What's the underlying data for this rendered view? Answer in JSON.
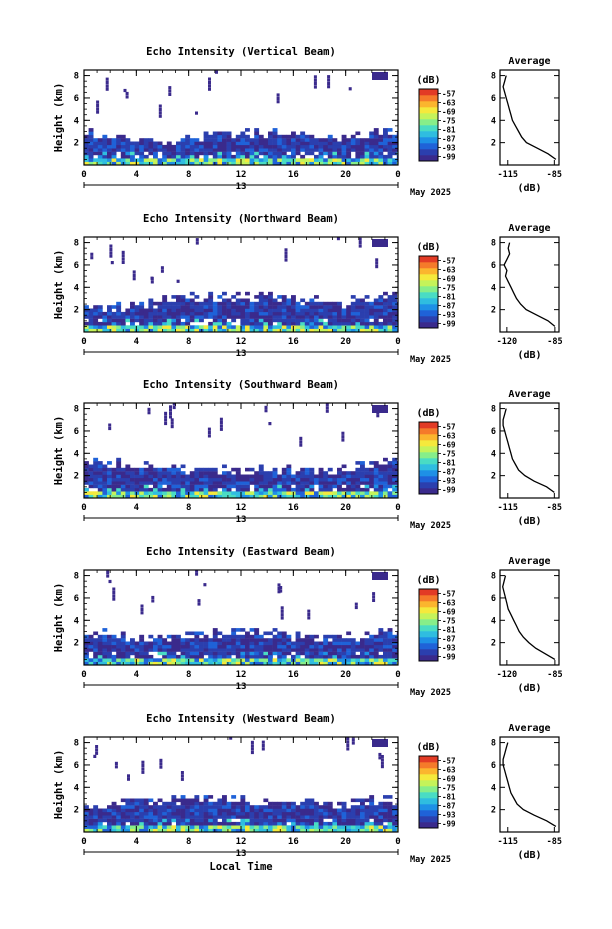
{
  "figure": {
    "month_label": "May 2025",
    "day_label": "13",
    "x_axis_title": "Local Time",
    "y_axis_title": "Height (km)",
    "colorbar_unit": "(dB)",
    "colorbar_ticks": [
      "-57",
      "-63",
      "-69",
      "-75",
      "-81",
      "-87",
      "-93",
      "-99"
    ],
    "avg_title": "Average",
    "avg_xlabel": "(dB)"
  },
  "chart_data": [
    {
      "type": "heatmap",
      "title": "Echo Intensity (Vertical Beam)",
      "xlabel": "",
      "ylabel": "Height (km)",
      "x_ticks": [
        "0",
        "4",
        "8",
        "12",
        "16",
        "20",
        "0"
      ],
      "y_ticks": [
        "2",
        "4",
        "6",
        "8"
      ],
      "xlim": [
        0,
        24
      ],
      "ylim": [
        0,
        8.5
      ],
      "colorbar_range_db": [
        -99,
        -57
      ],
      "layer_top_km": [
        3.0,
        2.6,
        2.4,
        2.2,
        2.2,
        2.3,
        2.6,
        2.9,
        3.0,
        3.1,
        3.0,
        2.9,
        2.6,
        2.3,
        2.9,
        3.2,
        3.3
      ],
      "profile": {
        "title": "Average",
        "xlabel": "(dB)",
        "x_ticks": [
          "-115",
          "-85"
        ],
        "y_ticks": [
          "2",
          "4",
          "6",
          "8"
        ],
        "xlim": [
          -120,
          -82
        ],
        "height_km": [
          0.5,
          1.0,
          1.5,
          2.0,
          2.5,
          3.0,
          3.5,
          4.0,
          4.5,
          5.0,
          5.5,
          6.0,
          6.5,
          7.0,
          7.5,
          8.0
        ],
        "mean_db": [
          -84,
          -89,
          -96,
          -103,
          -106,
          -108,
          -110,
          -112,
          -113,
          -114,
          -115,
          -116,
          -117,
          -118,
          -117,
          -116
        ]
      }
    },
    {
      "type": "heatmap",
      "title": "Echo Intensity (Northward Beam)",
      "xlabel": "",
      "ylabel": "Height (km)",
      "x_ticks": [
        "0",
        "4",
        "8",
        "12",
        "16",
        "20",
        "0"
      ],
      "y_ticks": [
        "2",
        "4",
        "6",
        "8"
      ],
      "xlim": [
        0,
        24
      ],
      "ylim": [
        0,
        8.5
      ],
      "colorbar_range_db": [
        -99,
        -57
      ],
      "layer_top_km": [
        2.2,
        2.2,
        2.3,
        2.5,
        2.9,
        3.1,
        3.2,
        3.3,
        3.1,
        3.3,
        3.2,
        3.0,
        2.9,
        2.7,
        3.0,
        3.2,
        3.2
      ],
      "profile": {
        "title": "Average",
        "xlabel": "(dB)",
        "x_ticks": [
          "-120",
          "-85"
        ],
        "y_ticks": [
          "2",
          "4",
          "6",
          "8"
        ],
        "xlim": [
          -125,
          -82
        ],
        "height_km": [
          0.5,
          1.0,
          1.5,
          2.0,
          2.5,
          3.0,
          3.5,
          4.0,
          4.5,
          5.0,
          5.5,
          6.0,
          6.5,
          7.0,
          7.5,
          8.0
        ],
        "mean_db": [
          -85,
          -90,
          -98,
          -106,
          -110,
          -113,
          -115,
          -117,
          -119,
          -121,
          -120,
          -122,
          -120,
          -118,
          -119,
          -118
        ]
      }
    },
    {
      "type": "heatmap",
      "title": "Echo Intensity (Southward Beam)",
      "xlabel": "",
      "ylabel": "Height (km)",
      "x_ticks": [
        "0",
        "4",
        "8",
        "12",
        "16",
        "20",
        "0"
      ],
      "y_ticks": [
        "2",
        "4",
        "6",
        "8"
      ],
      "xlim": [
        0,
        24
      ],
      "ylim": [
        0,
        8.5
      ],
      "colorbar_range_db": [
        -99,
        -57
      ],
      "layer_top_km": [
        3.6,
        3.4,
        3.2,
        3.0,
        2.7,
        2.5,
        2.5,
        2.6,
        2.7,
        2.6,
        2.6,
        2.5,
        2.5,
        2.6,
        3.0,
        3.4,
        3.6
      ],
      "profile": {
        "title": "Average",
        "xlabel": "(dB)",
        "x_ticks": [
          "-115",
          "-85"
        ],
        "y_ticks": [
          "2",
          "4",
          "6",
          "8"
        ],
        "xlim": [
          -120,
          -82
        ],
        "height_km": [
          0.5,
          1.0,
          1.5,
          2.0,
          2.5,
          3.0,
          3.5,
          4.0,
          4.5,
          5.0,
          5.5,
          6.0,
          6.5,
          7.0,
          7.5,
          8.0
        ],
        "mean_db": [
          -85,
          -90,
          -98,
          -104,
          -108,
          -110,
          -112,
          -113,
          -114,
          -115,
          -116,
          -117,
          -118,
          -118,
          -117,
          -116
        ]
      }
    },
    {
      "type": "heatmap",
      "title": "Echo Intensity (Eastward Beam)",
      "xlabel": "",
      "ylabel": "Height (km)",
      "x_ticks": [
        "0",
        "4",
        "8",
        "12",
        "16",
        "20",
        "0"
      ],
      "y_ticks": [
        "2",
        "4",
        "6",
        "8"
      ],
      "xlim": [
        0,
        24
      ],
      "ylim": [
        0,
        8.5
      ],
      "colorbar_range_db": [
        -99,
        -57
      ],
      "layer_top_km": [
        3.0,
        2.9,
        2.7,
        2.6,
        2.5,
        2.6,
        2.8,
        3.1,
        3.1,
        3.0,
        2.8,
        2.6,
        2.5,
        2.4,
        2.8,
        3.1,
        3.1
      ],
      "profile": {
        "title": "Average",
        "xlabel": "(dB)",
        "x_ticks": [
          "-120",
          "-85"
        ],
        "y_ticks": [
          "2",
          "4",
          "6",
          "8"
        ],
        "xlim": [
          -125,
          -82
        ],
        "height_km": [
          0.5,
          1.0,
          1.5,
          2.0,
          2.5,
          3.0,
          3.5,
          4.0,
          4.5,
          5.0,
          5.5,
          6.0,
          6.5,
          7.0,
          7.5,
          8.0
        ],
        "mean_db": [
          -85,
          -92,
          -99,
          -104,
          -108,
          -111,
          -113,
          -115,
          -117,
          -119,
          -120,
          -121,
          -122,
          -123,
          -122,
          -121
        ]
      }
    },
    {
      "type": "heatmap",
      "title": "Echo Intensity (Westward Beam)",
      "xlabel": "Local Time",
      "ylabel": "Height (km)",
      "x_ticks": [
        "0",
        "4",
        "8",
        "12",
        "16",
        "20",
        "0"
      ],
      "y_ticks": [
        "2",
        "4",
        "6",
        "8"
      ],
      "xlim": [
        0,
        24
      ],
      "ylim": [
        0,
        8.5
      ],
      "colorbar_range_db": [
        -99,
        -57
      ],
      "layer_top_km": [
        2.5,
        2.4,
        2.6,
        2.9,
        3.0,
        3.0,
        3.0,
        2.9,
        2.8,
        2.9,
        2.7,
        2.6,
        2.6,
        2.5,
        2.8,
        2.9,
        2.8
      ],
      "profile": {
        "title": "Average",
        "xlabel": "(dB)",
        "x_ticks": [
          "-115",
          "-85"
        ],
        "y_ticks": [
          "2",
          "4",
          "6",
          "8"
        ],
        "xlim": [
          -120,
          -82
        ],
        "height_km": [
          0.5,
          1.0,
          1.5,
          2.0,
          2.5,
          3.0,
          3.5,
          4.0,
          4.5,
          5.0,
          5.5,
          6.0,
          6.5,
          7.0,
          7.5,
          8.0
        ],
        "mean_db": [
          -84,
          -90,
          -98,
          -105,
          -109,
          -111,
          -113,
          -114,
          -115,
          -116,
          -117,
          -118,
          -118,
          -117,
          -116,
          -115
        ]
      }
    }
  ],
  "colormap": [
    "#3a2a8c",
    "#2b3fae",
    "#1f62d8",
    "#1e90e6",
    "#2fbde0",
    "#49dcc4",
    "#86ee8a",
    "#c5f35a",
    "#f5e93c",
    "#fbb52e",
    "#f57a2a",
    "#e23b25"
  ]
}
